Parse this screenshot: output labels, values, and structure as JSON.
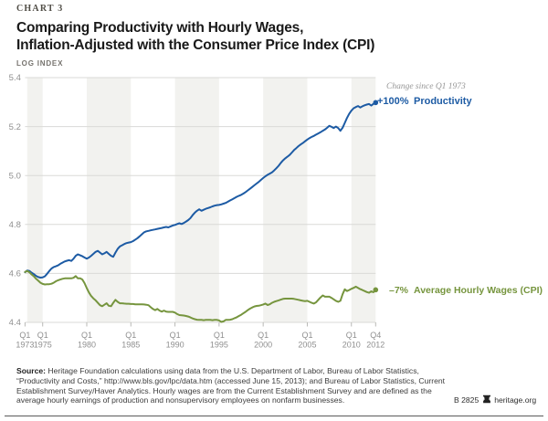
{
  "header": {
    "kicker": "CHART 3",
    "title_line1": "Comparing Productivity with Hourly Wages,",
    "title_line2": "Inflation-Adjusted with the Consumer Price Index (CPI)"
  },
  "chart_data": {
    "type": "line",
    "title": "Comparing Productivity with Hourly Wages, Inflation-Adjusted with the Consumer Price Index (CPI)",
    "ylabel": "LOG INDEX",
    "xlabel": "",
    "ylim": [
      4.4,
      5.4
    ],
    "y_ticks": [
      5.4,
      5.2,
      5.0,
      4.8,
      4.6,
      4.4
    ],
    "grid": true,
    "legend_position": "right-of-line-ends",
    "annotation": "Change since Q1 1973",
    "x_start": 1973.0,
    "x_step": 0.25,
    "x_end": 2012.75,
    "x_ticks": [
      {
        "line1": "Q1",
        "line2": "1973",
        "x": 1973
      },
      {
        "line1": "Q1",
        "line2": "1975",
        "x": 1975
      },
      {
        "line1": "Q1",
        "line2": "1980",
        "x": 1980
      },
      {
        "line1": "Q1",
        "line2": "1985",
        "x": 1985
      },
      {
        "line1": "Q1",
        "line2": "1990",
        "x": 1990
      },
      {
        "line1": "Q1",
        "line2": "1995",
        "x": 1995
      },
      {
        "line1": "Q1",
        "line2": "2000",
        "x": 2000
      },
      {
        "line1": "Q1",
        "line2": "2005",
        "x": 2005
      },
      {
        "line1": "Q1",
        "line2": "2010",
        "x": 2010
      },
      {
        "line1": "Q4",
        "line2": "2012",
        "x": 2012.75
      }
    ],
    "shaded_bands": [
      [
        1973.25,
        1975
      ],
      [
        1980,
        1985
      ],
      [
        1990,
        1995
      ],
      [
        2000,
        2005
      ],
      [
        2010,
        2012.75
      ]
    ],
    "band_color": "#f2f2ef",
    "grid_color": "#dadad7",
    "tick_color": "#b9b9b6",
    "axis_text_color": "#8f8f8f",
    "series": [
      {
        "name": "Productivity",
        "change_label": "+100%",
        "color": "#1d5ba4",
        "values": [
          4.605,
          4.612,
          4.61,
          4.603,
          4.597,
          4.59,
          4.585,
          4.583,
          4.584,
          4.588,
          4.598,
          4.61,
          4.62,
          4.626,
          4.629,
          4.633,
          4.639,
          4.644,
          4.649,
          4.652,
          4.654,
          4.651,
          4.66,
          4.672,
          4.678,
          4.674,
          4.67,
          4.665,
          4.66,
          4.665,
          4.672,
          4.68,
          4.688,
          4.692,
          4.685,
          4.678,
          4.682,
          4.688,
          4.68,
          4.672,
          4.668,
          4.685,
          4.7,
          4.71,
          4.715,
          4.72,
          4.724,
          4.726,
          4.728,
          4.732,
          4.738,
          4.744,
          4.752,
          4.76,
          4.768,
          4.772,
          4.774,
          4.776,
          4.778,
          4.78,
          4.782,
          4.784,
          4.786,
          4.788,
          4.79,
          4.788,
          4.792,
          4.796,
          4.798,
          4.802,
          4.805,
          4.802,
          4.806,
          4.812,
          4.818,
          4.826,
          4.838,
          4.848,
          4.856,
          4.862,
          4.856,
          4.86,
          4.864,
          4.867,
          4.87,
          4.874,
          4.877,
          4.879,
          4.88,
          4.882,
          4.885,
          4.888,
          4.893,
          4.898,
          4.903,
          4.908,
          4.913,
          4.917,
          4.921,
          4.926,
          4.932,
          4.939,
          4.946,
          4.953,
          4.96,
          4.967,
          4.974,
          4.982,
          4.99,
          4.997,
          5.003,
          5.008,
          5.013,
          5.021,
          5.03,
          5.04,
          5.052,
          5.062,
          5.07,
          5.077,
          5.084,
          5.094,
          5.104,
          5.112,
          5.12,
          5.127,
          5.133,
          5.14,
          5.147,
          5.153,
          5.158,
          5.162,
          5.167,
          5.172,
          5.177,
          5.183,
          5.188,
          5.195,
          5.203,
          5.199,
          5.194,
          5.2,
          5.194,
          5.183,
          5.195,
          5.215,
          5.235,
          5.252,
          5.265,
          5.275,
          5.28,
          5.284,
          5.278,
          5.283,
          5.287,
          5.29,
          5.292,
          5.286,
          5.293,
          5.298
        ]
      },
      {
        "name": "Average Hourly Wages (CPI)",
        "change_label": "–7%",
        "color": "#76953e",
        "values": [
          4.606,
          4.61,
          4.605,
          4.596,
          4.588,
          4.578,
          4.57,
          4.562,
          4.557,
          4.555,
          4.556,
          4.556,
          4.558,
          4.562,
          4.568,
          4.572,
          4.575,
          4.578,
          4.58,
          4.58,
          4.58,
          4.58,
          4.582,
          4.589,
          4.58,
          4.58,
          4.575,
          4.56,
          4.54,
          4.522,
          4.508,
          4.498,
          4.49,
          4.48,
          4.47,
          4.466,
          4.472,
          4.478,
          4.468,
          4.466,
          4.48,
          4.492,
          4.484,
          4.478,
          4.478,
          4.477,
          4.476,
          4.476,
          4.475,
          4.475,
          4.474,
          4.474,
          4.474,
          4.474,
          4.473,
          4.472,
          4.47,
          4.462,
          4.455,
          4.45,
          4.455,
          4.448,
          4.444,
          4.448,
          4.444,
          4.443,
          4.443,
          4.443,
          4.44,
          4.434,
          4.43,
          4.429,
          4.428,
          4.426,
          4.424,
          4.42,
          4.416,
          4.413,
          4.411,
          4.41,
          4.41,
          4.409,
          4.41,
          4.41,
          4.41,
          4.409,
          4.41,
          4.41,
          4.408,
          4.402,
          4.404,
          4.41,
          4.41,
          4.411,
          4.413,
          4.417,
          4.421,
          4.426,
          4.431,
          4.437,
          4.443,
          4.45,
          4.456,
          4.461,
          4.465,
          4.467,
          4.468,
          4.47,
          4.473,
          4.477,
          4.471,
          4.474,
          4.48,
          4.484,
          4.487,
          4.49,
          4.493,
          4.496,
          4.497,
          4.497,
          4.497,
          4.497,
          4.496,
          4.494,
          4.492,
          4.49,
          4.488,
          4.487,
          4.488,
          4.484,
          4.48,
          4.477,
          4.482,
          4.492,
          4.502,
          4.51,
          4.505,
          4.505,
          4.505,
          4.5,
          4.494,
          4.488,
          4.484,
          4.488,
          4.515,
          4.535,
          4.528,
          4.532,
          4.537,
          4.541,
          4.546,
          4.541,
          4.536,
          4.532,
          4.528,
          4.524,
          4.521,
          4.527,
          4.523,
          4.533
        ]
      }
    ]
  },
  "footer": {
    "source_label": "Source:",
    "source_text": " Heritage Foundation calculations using data from the U.S. Department of Labor, Bureau of Labor Statistics, “Productivity and Costs,” http://www.bls.gov/lpc/data.htm (accessed June 15, 2013); and Bureau of Labor Statistics, Current Establishment Survey/Haver Analytics. Hourly wages are from the Current Establishment Survey and are defined as the average hourly earnings of production and nonsupervisory employees on nonfarm businesses.",
    "doc_id": "B 2825",
    "site": "heritage.org"
  }
}
